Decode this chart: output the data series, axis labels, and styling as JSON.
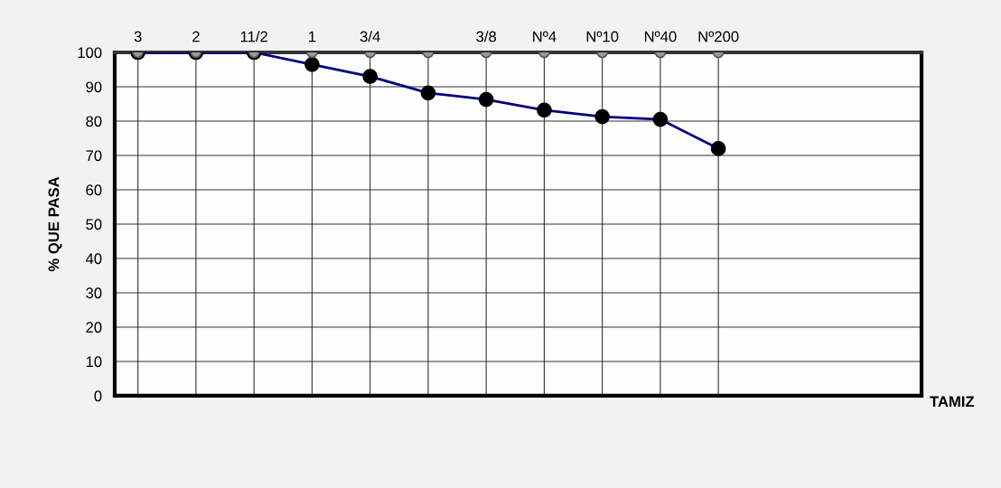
{
  "chart_data": {
    "type": "line",
    "annotations": [
      "TAMIZ"
    ],
    "ylabel": "% QUE PASA",
    "categories": [
      "3",
      "2",
      "11/2",
      "1",
      "3/4",
      null,
      "3/8",
      "Nº4",
      "Nº10",
      "Nº40",
      "Nº200"
    ],
    "ylim": [
      0,
      100
    ],
    "yticks": [
      0,
      10,
      20,
      30,
      40,
      50,
      60,
      70,
      80,
      90,
      100
    ],
    "grid": true,
    "marker": "circle",
    "line_style": "solid",
    "series": [
      {
        "color": "#000080",
        "values": [
          100,
          100,
          100,
          96.5,
          93,
          88.2,
          86.3,
          83.2,
          81.3,
          80.5,
          72
        ]
      },
      {
        "type": "scatter",
        "color": "#999999",
        "values": [
          100,
          100,
          100,
          100,
          100,
          100,
          100,
          100,
          100,
          100,
          100
        ]
      }
    ]
  }
}
